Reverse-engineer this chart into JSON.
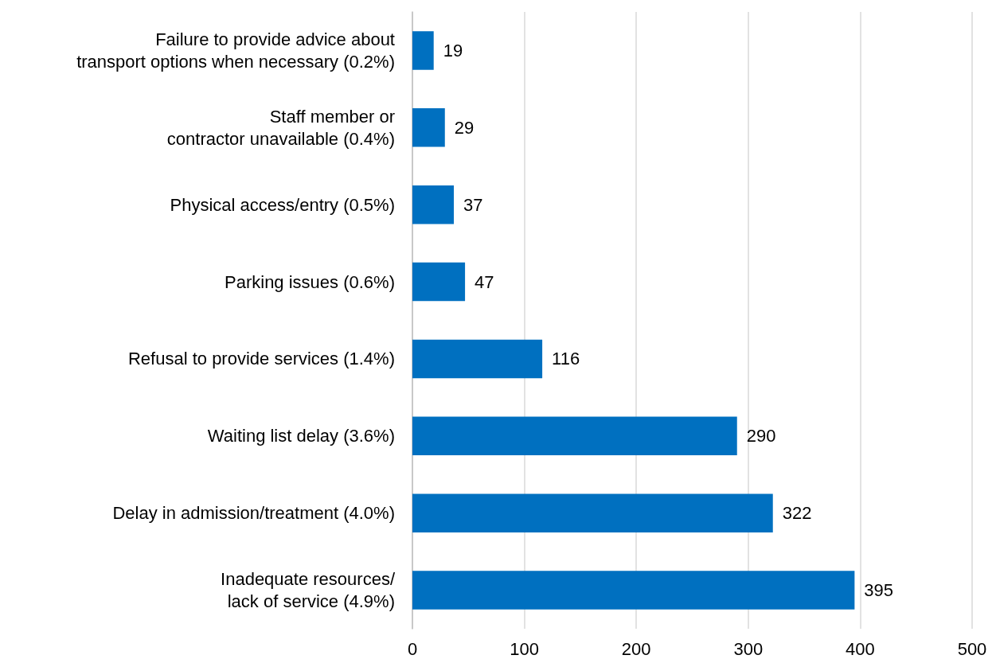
{
  "chart_data": {
    "type": "bar",
    "orientation": "horizontal",
    "categories": [
      "Failure to provide advice about\ntransport options when necessary (0.2%)",
      "Staff member or\ncontractor unavailable (0.4%)",
      "Physical access/entry (0.5%)",
      "Parking issues (0.6%)",
      "Refusal to provide services (1.4%)",
      "Waiting list delay (3.6%)",
      "Delay in admission/treatment (4.0%)",
      "Inadequate resources/\nlack of service (4.9%)"
    ],
    "values": [
      19,
      29,
      37,
      47,
      116,
      290,
      322,
      395
    ],
    "color": "#0070c0",
    "xlim": [
      0,
      500
    ],
    "xticks": [
      0,
      100,
      200,
      300,
      400,
      500
    ],
    "grid": "x",
    "data_labels": true
  }
}
